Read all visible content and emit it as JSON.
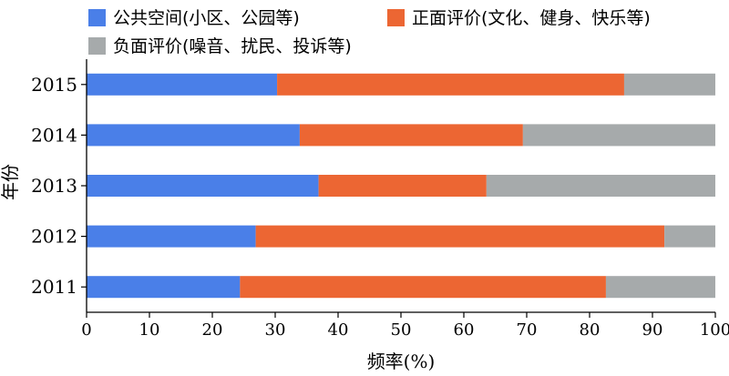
{
  "chart_data": {
    "type": "bar",
    "orientation": "horizontal",
    "stacked": true,
    "categories": [
      "2015",
      "2014",
      "2013",
      "2012",
      "2011"
    ],
    "series": [
      {
        "name": "公共空间(小区、公园等)",
        "color": "#4a7fe8",
        "values": [
          30.3,
          33.9,
          36.9,
          26.9,
          24.4
        ]
      },
      {
        "name": "正面评价(文化、健身、快乐等)",
        "color": "#ec6633",
        "values": [
          55.2,
          35.5,
          26.7,
          65.0,
          58.2
        ]
      },
      {
        "name": "负面评价(噪音、扰民、投诉等)",
        "color": "#a6aaab",
        "values": [
          14.5,
          30.6,
          36.4,
          8.1,
          17.4
        ]
      }
    ],
    "xlabel": "频率(%)",
    "ylabel": "年份",
    "xlim": [
      0,
      100
    ],
    "xticks": [
      "0",
      "10",
      "20",
      "30",
      "40",
      "50",
      "60",
      "70",
      "80",
      "90",
      "100"
    ],
    "grid": false,
    "legend_position": "top"
  }
}
